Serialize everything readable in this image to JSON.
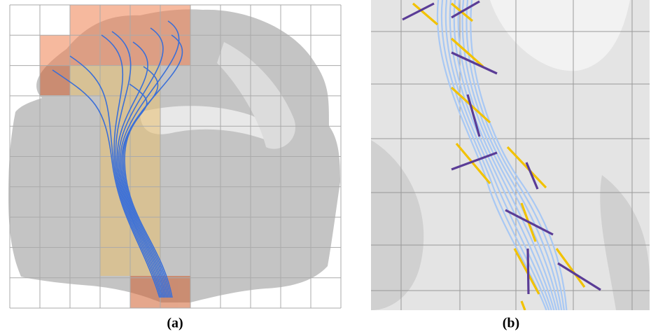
{
  "panels": [
    {
      "label": "(a)"
    },
    {
      "label": "(b)"
    }
  ]
}
